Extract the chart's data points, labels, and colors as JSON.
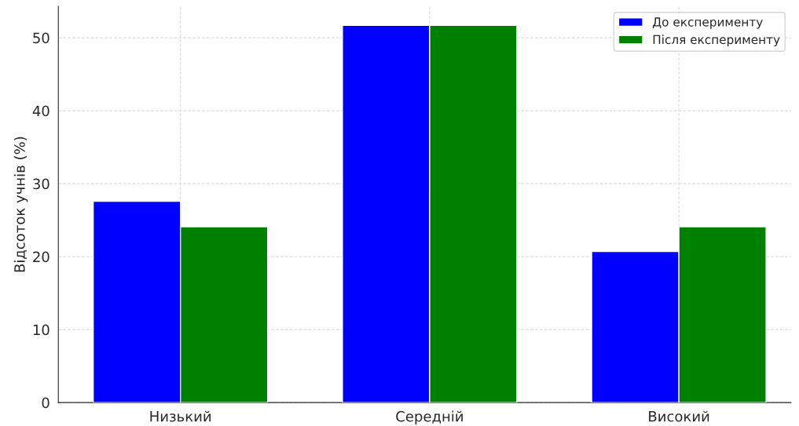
{
  "chart_data": {
    "type": "bar",
    "ylabel": "Відсоток учнів (%)",
    "categories": [
      "Низький",
      "Середній",
      "Високий"
    ],
    "series": [
      {
        "name": "До експерименту",
        "color": "#0000ff",
        "values": [
          27.6,
          51.7,
          20.7
        ]
      },
      {
        "name": "Після експерименту",
        "color": "#008000",
        "values": [
          24.1,
          51.7,
          24.1
        ]
      }
    ],
    "ylim": [
      0,
      54.3
    ],
    "yticks": [
      0,
      10,
      20,
      30,
      40,
      50
    ],
    "grid": true,
    "legend": "top right"
  }
}
